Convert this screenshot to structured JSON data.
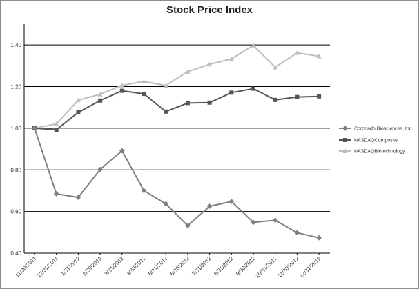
{
  "chart_data": {
    "type": "line",
    "title": "Stock Price Index",
    "xlabel": "",
    "ylabel": "",
    "ylim": [
      0.4,
      1.5
    ],
    "yticks": [
      0.4,
      0.6,
      0.8,
      1.0,
      1.2,
      1.4
    ],
    "ytick_labels": [
      "0.40",
      "0.60",
      "0.80",
      "1.00",
      "1.20",
      "1.40"
    ],
    "grid": "horizontal",
    "legend_position": "right",
    "x": [
      "11/30/2011",
      "12/31/2011",
      "1/31/2012",
      "2/29/2012",
      "3/31/2012",
      "4/30/2012",
      "5/31/2012",
      "6/30/2012",
      "7/31/2012",
      "8/31/2012",
      "9/30/2012",
      "10/31/2012",
      "11/30/2012",
      "12/31/2012"
    ],
    "series": [
      {
        "name": "Coronado Biosciences, Inc.",
        "marker": "diamond",
        "color": "#7f7f7f",
        "values": [
          1.0,
          0.685,
          0.668,
          0.802,
          0.892,
          0.7,
          0.637,
          0.532,
          0.625,
          0.648,
          0.548,
          0.558,
          0.498,
          0.474
        ]
      },
      {
        "name": "NASDAQComposite",
        "marker": "square",
        "color": "#555555",
        "values": [
          1.0,
          0.993,
          1.076,
          1.133,
          1.18,
          1.165,
          1.08,
          1.121,
          1.123,
          1.171,
          1.19,
          1.136,
          1.15,
          1.153
        ]
      },
      {
        "name": "NASDAQBiotechnology",
        "marker": "triangle",
        "color": "#bdbdbd",
        "values": [
          1.0,
          1.021,
          1.135,
          1.163,
          1.206,
          1.225,
          1.205,
          1.272,
          1.307,
          1.333,
          1.398,
          1.293,
          1.362,
          1.346
        ]
      }
    ]
  }
}
